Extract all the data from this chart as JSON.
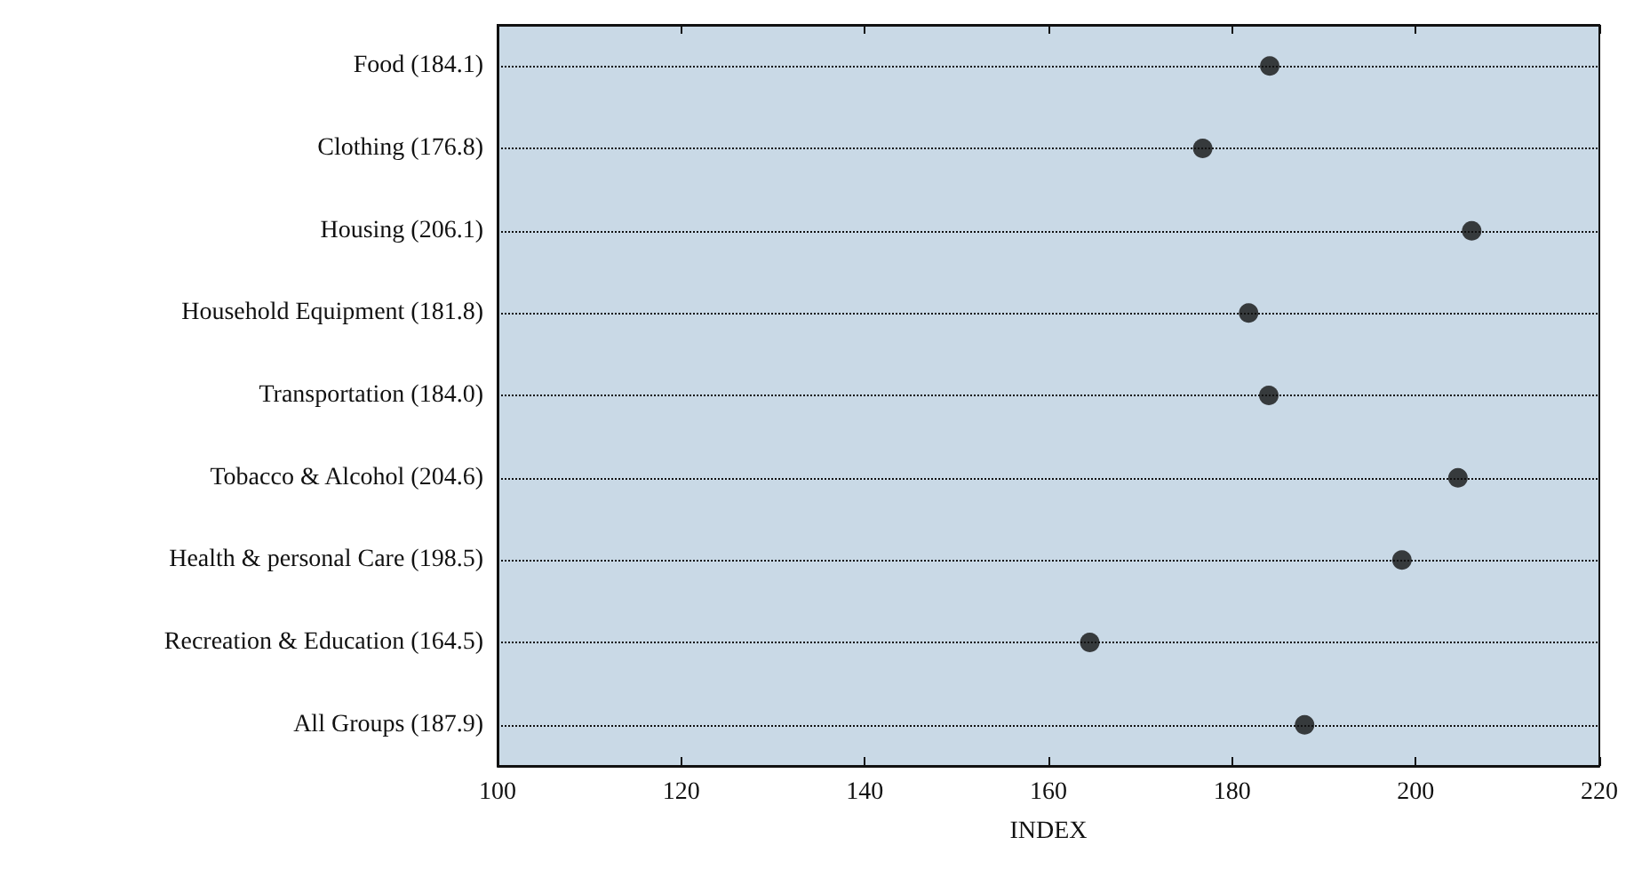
{
  "chart_data": {
    "type": "scatter",
    "orientation": "horizontal",
    "xlabel": "INDEX",
    "categories": [
      "Food (184.1)",
      "Clothing (176.8)",
      "Housing (206.1)",
      "Household Equipment (181.8)",
      "Transportation (184.0)",
      "Tobacco & Alcohol (204.6)",
      "Health & personal Care (198.5)",
      "Recreation & Education (164.5)",
      "All Groups (187.9)"
    ],
    "values": [
      184.1,
      176.8,
      206.1,
      181.8,
      184.0,
      204.6,
      198.5,
      164.5,
      187.9
    ],
    "color": "#111111",
    "marker": "circle",
    "grid": "y",
    "xlim": [
      100,
      220
    ],
    "xticks": [
      100,
      120,
      140,
      160,
      180,
      200,
      220
    ]
  }
}
